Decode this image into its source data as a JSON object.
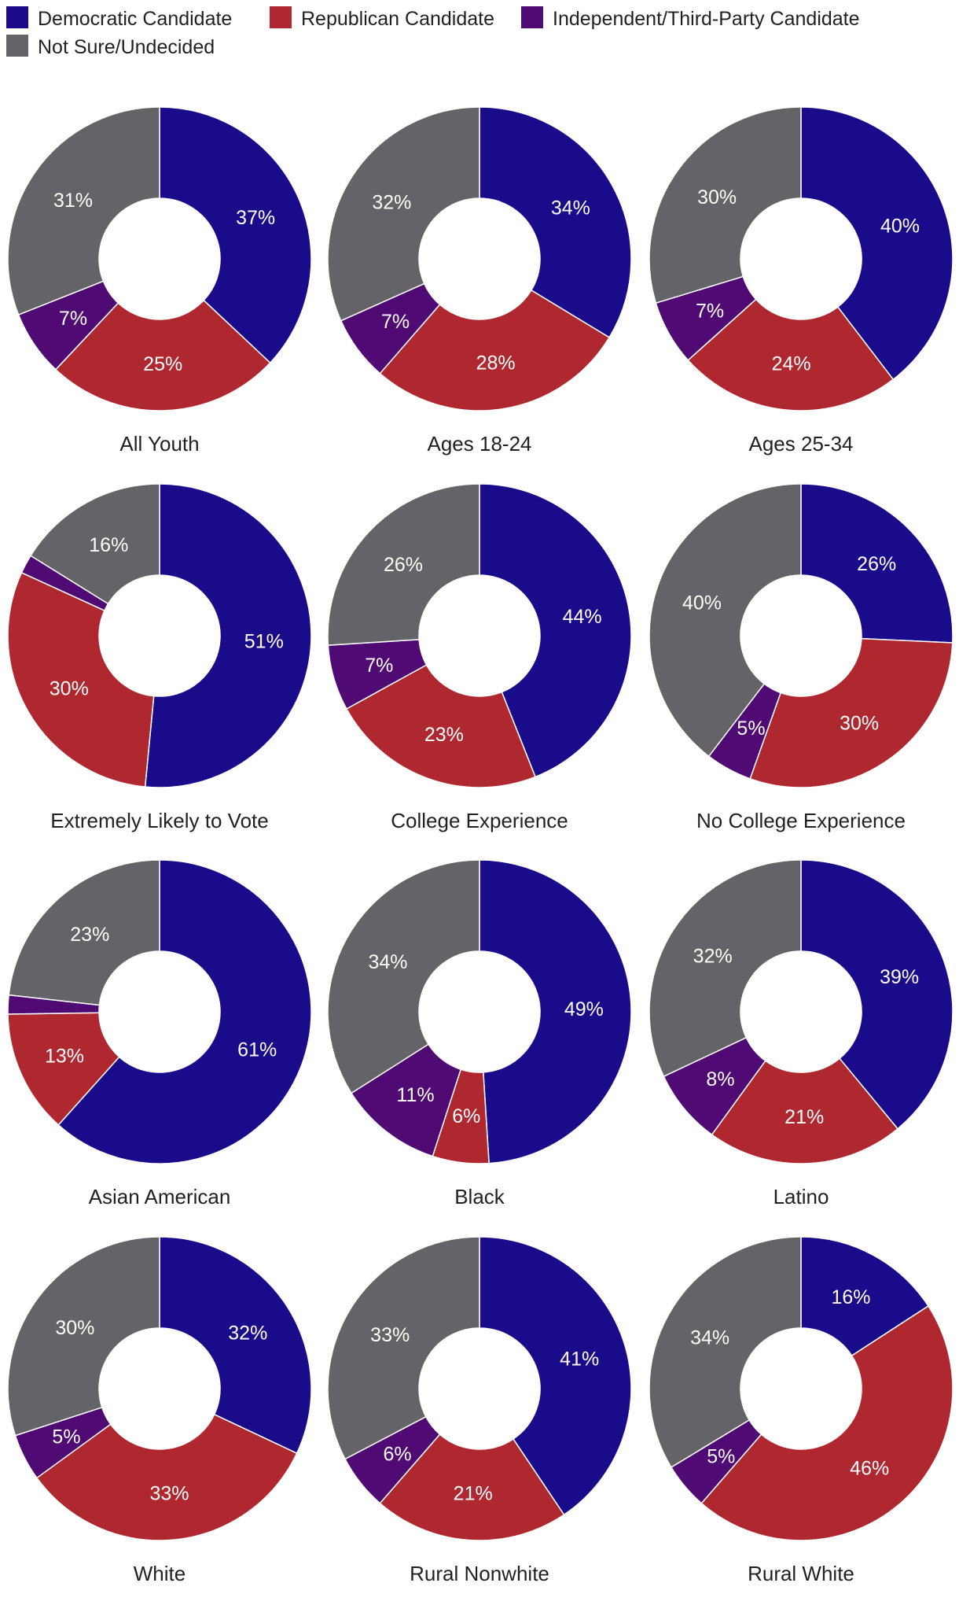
{
  "colors": {
    "democratic": "#190b8a",
    "republican": "#b0282f",
    "independent": "#4f0b73",
    "undecided": "#646468"
  },
  "chart_data": {
    "type": "pie",
    "variant": "donut",
    "series": [
      {
        "name": "Democratic Candidate",
        "color": "#190b8a"
      },
      {
        "name": "Republican Candidate",
        "color": "#b0282f"
      },
      {
        "name": "Independent/Third-Party Candidate",
        "color": "#4f0b73"
      },
      {
        "name": "Not Sure/Undecided",
        "color": "#646468"
      }
    ],
    "legend_position": "top-left",
    "charts": [
      {
        "title": "All Youth",
        "values": [
          37,
          25,
          7,
          31
        ],
        "labels": [
          "37%",
          "25%",
          "7%",
          "31%"
        ]
      },
      {
        "title": "Ages 18-24",
        "values": [
          34,
          28,
          7,
          32
        ],
        "labels": [
          "34%",
          "28%",
          "7%",
          "32%"
        ]
      },
      {
        "title": "Ages 25-34",
        "values": [
          40,
          24,
          7,
          30
        ],
        "labels": [
          "40%",
          "24%",
          "7%",
          "30%"
        ]
      },
      {
        "title": "Extremely Likely to Vote",
        "values": [
          51,
          30,
          2,
          16
        ],
        "labels": [
          "51%",
          "30%",
          "",
          "16%"
        ]
      },
      {
        "title": "College Experience",
        "values": [
          44,
          23,
          7,
          26
        ],
        "labels": [
          "44%",
          "23%",
          "7%",
          "26%"
        ]
      },
      {
        "title": "No College Experience",
        "values": [
          26,
          30,
          5,
          40
        ],
        "labels": [
          "26%",
          "30%",
          "5%",
          "40%"
        ]
      },
      {
        "title": "Asian American",
        "values": [
          61,
          13,
          2,
          23
        ],
        "labels": [
          "61%",
          "13%",
          "",
          "23%"
        ]
      },
      {
        "title": "Black",
        "values": [
          49,
          6,
          11,
          34
        ],
        "labels": [
          "49%",
          "6%",
          "11%",
          "34%"
        ]
      },
      {
        "title": "Latino",
        "values": [
          39,
          21,
          8,
          32
        ],
        "labels": [
          "39%",
          "21%",
          "8%",
          "32%"
        ]
      },
      {
        "title": "White",
        "values": [
          32,
          33,
          5,
          30
        ],
        "labels": [
          "32%",
          "33%",
          "5%",
          "30%"
        ]
      },
      {
        "title": "Rural Nonwhite",
        "values": [
          41,
          21,
          6,
          33
        ],
        "labels": [
          "41%",
          "21%",
          "6%",
          "33%"
        ]
      },
      {
        "title": "Rural White",
        "values": [
          16,
          46,
          5,
          34
        ],
        "labels": [
          "16%",
          "46%",
          "5%",
          "34%"
        ]
      }
    ]
  }
}
